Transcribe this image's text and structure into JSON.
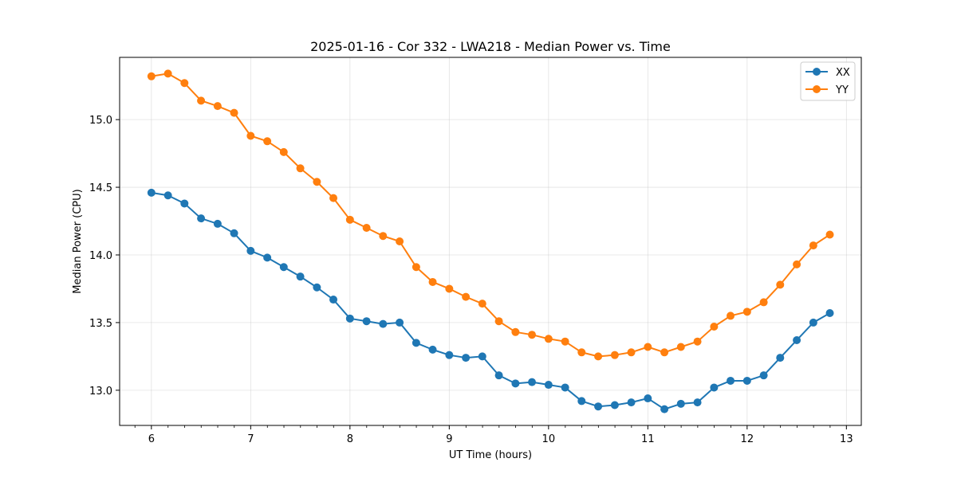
{
  "chart_data": {
    "type": "line",
    "title": "2025-01-16 - Cor 332 - LWA218 - Median Power vs. Time",
    "xlabel": "UT Time (hours)",
    "ylabel": "Median Power (CPU)",
    "xlim": [
      5.68,
      13.15
    ],
    "ylim": [
      12.74,
      15.46
    ],
    "xticks": [
      6,
      7,
      8,
      9,
      10,
      11,
      12,
      13
    ],
    "xtick_labels": [
      "6",
      "7",
      "8",
      "9",
      "10",
      "11",
      "12",
      "13"
    ],
    "xminor_step": 0.1667,
    "yticks": [
      13.0,
      13.5,
      14.0,
      14.5,
      15.0
    ],
    "ytick_labels": [
      "13.0",
      "13.5",
      "14.0",
      "14.5",
      "15.0"
    ],
    "grid": true,
    "legend_position": "top-right",
    "x": [
      6.0,
      6.167,
      6.333,
      6.5,
      6.667,
      6.833,
      7.0,
      7.167,
      7.333,
      7.5,
      7.667,
      7.833,
      8.0,
      8.167,
      8.333,
      8.5,
      8.667,
      8.833,
      9.0,
      9.167,
      9.333,
      9.5,
      9.667,
      9.833,
      10.0,
      10.167,
      10.333,
      10.5,
      10.667,
      10.833,
      11.0,
      11.167,
      11.333,
      11.5,
      11.667,
      11.833,
      12.0,
      12.167,
      12.333,
      12.5,
      12.667,
      12.833
    ],
    "series": [
      {
        "name": "XX",
        "color": "#1f77b4",
        "values": [
          14.46,
          14.44,
          14.38,
          14.27,
          14.23,
          14.16,
          14.03,
          13.98,
          13.91,
          13.84,
          13.76,
          13.67,
          13.53,
          13.51,
          13.49,
          13.5,
          13.35,
          13.3,
          13.26,
          13.24,
          13.25,
          13.11,
          13.05,
          13.06,
          13.04,
          13.02,
          12.92,
          12.88,
          12.89,
          12.91,
          12.94,
          12.86,
          12.9,
          12.91,
          13.02,
          13.07,
          13.07,
          13.11,
          13.24,
          13.37,
          13.5,
          13.57
        ]
      },
      {
        "name": "YY",
        "color": "#ff7f0e",
        "values": [
          15.32,
          15.34,
          15.27,
          15.14,
          15.1,
          15.05,
          14.88,
          14.84,
          14.76,
          14.64,
          14.54,
          14.42,
          14.26,
          14.2,
          14.14,
          14.1,
          13.91,
          13.8,
          13.75,
          13.69,
          13.64,
          13.51,
          13.43,
          13.41,
          13.38,
          13.36,
          13.28,
          13.25,
          13.26,
          13.28,
          13.32,
          13.28,
          13.32,
          13.36,
          13.47,
          13.55,
          13.58,
          13.65,
          13.78,
          13.93,
          14.07,
          14.15
        ]
      }
    ]
  }
}
